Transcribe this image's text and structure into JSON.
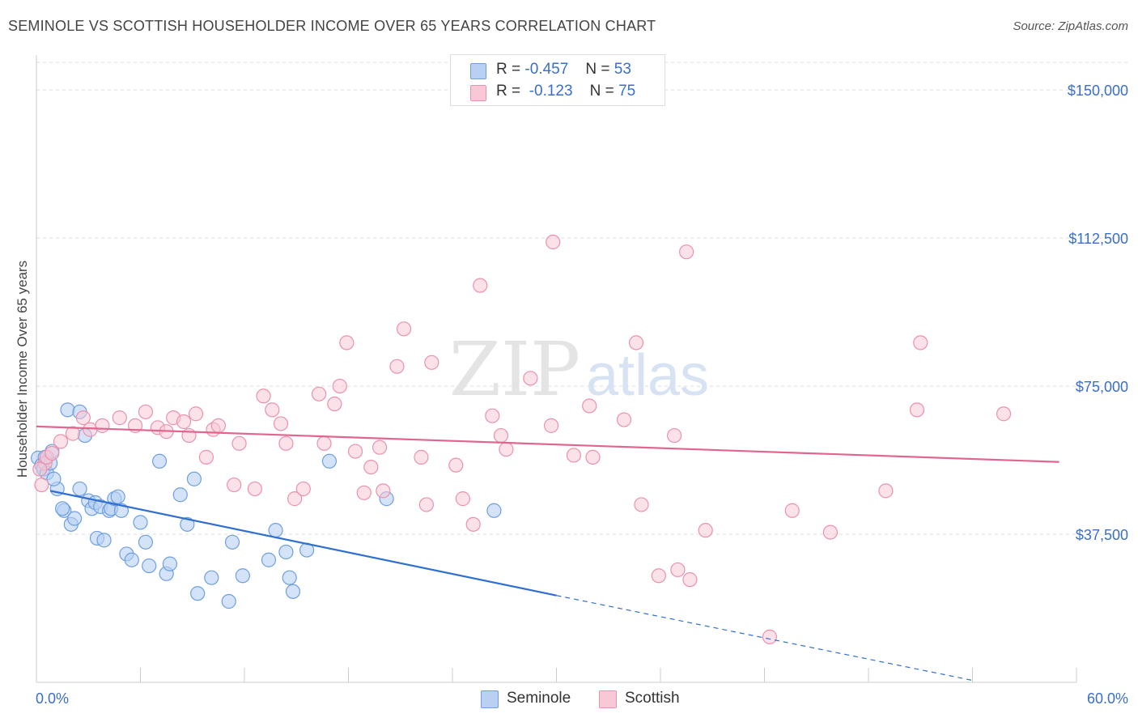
{
  "header": {
    "title": "SEMINOLE VS SCOTTISH HOUSEHOLDER INCOME OVER 65 YEARS CORRELATION CHART",
    "source": "Source: ZipAtlas.com"
  },
  "legend": {
    "rows": [
      {
        "r_label": "R =",
        "r_value": "-0.457",
        "n_label": "N =",
        "n_value": "53"
      },
      {
        "r_label": "R =",
        "r_value": "-0.123",
        "n_label": "N =",
        "n_value": "75"
      }
    ],
    "bottom": [
      "Seminole",
      "Scottish"
    ]
  },
  "watermark": {
    "zip": "ZIP",
    "atlas": "atlas"
  },
  "chart_data": {
    "type": "scatter",
    "title": "SEMINOLE VS SCOTTISH HOUSEHOLDER INCOME OVER 65 YEARS CORRELATION CHART",
    "xlabel": "",
    "ylabel": "Householder Income Over 65 years",
    "xlim": [
      0,
      60
    ],
    "ylim": [
      0,
      157000
    ],
    "x_tick_labels": [
      "0.0%",
      "60.0%"
    ],
    "y_ticks": [
      37500,
      75000,
      112500,
      150000
    ],
    "y_tick_labels": [
      "$37,500",
      "$75,000",
      "$112,500",
      "$150,000"
    ],
    "grid": true,
    "legend_position": "top-center",
    "colors": {
      "seminole_fill": "#b8d1f3",
      "seminole_stroke": "#6e9fe0",
      "seminole_line": "#2f6fd0",
      "scottish_fill": "#f8c8d6",
      "scottish_stroke": "#ea92ad",
      "scottish_line": "#e06690",
      "axis_label": "#3a6fc7"
    },
    "series": [
      {
        "name": "Seminole",
        "trend": {
          "x0": 0.8,
          "y0": 48500,
          "x1": 30,
          "y1": 22000,
          "dash_to_x": 54,
          "dash_to_y": 500
        },
        "points": [
          [
            0.1,
            56800
          ],
          [
            0.3,
            55000
          ],
          [
            0.4,
            54000
          ],
          [
            0.6,
            53000
          ],
          [
            0.8,
            55500
          ],
          [
            1.2,
            49000
          ],
          [
            1.6,
            43500
          ],
          [
            2.0,
            40000
          ],
          [
            2.5,
            49000
          ],
          [
            1.8,
            69000
          ],
          [
            2.5,
            68500
          ],
          [
            2.8,
            62500
          ],
          [
            3.0,
            46000
          ],
          [
            3.2,
            44000
          ],
          [
            3.4,
            45500
          ],
          [
            3.5,
            36500
          ],
          [
            3.7,
            44500
          ],
          [
            3.9,
            36000
          ],
          [
            4.2,
            43500
          ],
          [
            4.3,
            44000
          ],
          [
            4.5,
            46500
          ],
          [
            4.7,
            47000
          ],
          [
            4.9,
            43500
          ],
          [
            5.2,
            32500
          ],
          [
            5.5,
            31000
          ],
          [
            6.0,
            40500
          ],
          [
            6.3,
            35500
          ],
          [
            6.5,
            29500
          ],
          [
            7.1,
            56000
          ],
          [
            7.5,
            27500
          ],
          [
            7.7,
            30000
          ],
          [
            8.3,
            47500
          ],
          [
            8.7,
            40000
          ],
          [
            9.1,
            51500
          ],
          [
            9.3,
            22500
          ],
          [
            10.1,
            26500
          ],
          [
            11.1,
            20500
          ],
          [
            11.3,
            35500
          ],
          [
            11.9,
            27000
          ],
          [
            13.4,
            31000
          ],
          [
            13.8,
            38500
          ],
          [
            14.4,
            33000
          ],
          [
            14.6,
            26500
          ],
          [
            14.8,
            23000
          ],
          [
            15.6,
            33500
          ],
          [
            16.9,
            56000
          ],
          [
            20.2,
            46500
          ],
          [
            26.4,
            43500
          ],
          [
            0.5,
            57000
          ],
          [
            1.0,
            51500
          ],
          [
            1.5,
            44000
          ],
          [
            2.2,
            41500
          ],
          [
            0.9,
            58500
          ]
        ]
      },
      {
        "name": "Scottish",
        "trend": {
          "x0": 0,
          "y0": 64800,
          "x1": 59,
          "y1": 55800
        },
        "points": [
          [
            0.3,
            50000
          ],
          [
            0.5,
            55500
          ],
          [
            0.6,
            57000
          ],
          [
            0.9,
            58000
          ],
          [
            1.4,
            61000
          ],
          [
            2.1,
            63000
          ],
          [
            2.7,
            67000
          ],
          [
            3.1,
            64000
          ],
          [
            3.8,
            65000
          ],
          [
            4.8,
            67000
          ],
          [
            5.7,
            65000
          ],
          [
            6.3,
            68500
          ],
          [
            7.0,
            64500
          ],
          [
            7.5,
            63500
          ],
          [
            7.9,
            67000
          ],
          [
            8.5,
            66000
          ],
          [
            8.8,
            62500
          ],
          [
            9.2,
            68000
          ],
          [
            9.8,
            57000
          ],
          [
            10.2,
            64000
          ],
          [
            10.5,
            65000
          ],
          [
            11.4,
            50000
          ],
          [
            11.7,
            60500
          ],
          [
            12.6,
            49000
          ],
          [
            13.1,
            72500
          ],
          [
            13.6,
            69000
          ],
          [
            14.1,
            65500
          ],
          [
            14.4,
            60500
          ],
          [
            14.9,
            46500
          ],
          [
            15.4,
            49000
          ],
          [
            16.3,
            73000
          ],
          [
            16.6,
            60500
          ],
          [
            17.2,
            70500
          ],
          [
            17.5,
            75000
          ],
          [
            17.9,
            86000
          ],
          [
            18.4,
            58500
          ],
          [
            18.9,
            48000
          ],
          [
            19.3,
            54500
          ],
          [
            19.8,
            59500
          ],
          [
            20.0,
            48500
          ],
          [
            20.8,
            80000
          ],
          [
            21.2,
            89500
          ],
          [
            22.2,
            57000
          ],
          [
            22.5,
            45000
          ],
          [
            22.8,
            81000
          ],
          [
            24.2,
            55000
          ],
          [
            24.6,
            46500
          ],
          [
            25.2,
            40000
          ],
          [
            25.6,
            100500
          ],
          [
            26.3,
            67500
          ],
          [
            26.8,
            62500
          ],
          [
            27.1,
            59000
          ],
          [
            28.5,
            77000
          ],
          [
            29.7,
            65000
          ],
          [
            29.8,
            111500
          ],
          [
            31.0,
            57500
          ],
          [
            31.9,
            70000
          ],
          [
            32.1,
            57000
          ],
          [
            33.9,
            66500
          ],
          [
            34.6,
            86000
          ],
          [
            34.9,
            45000
          ],
          [
            35.9,
            27000
          ],
          [
            36.8,
            62500
          ],
          [
            37.0,
            28500
          ],
          [
            37.5,
            109000
          ],
          [
            37.7,
            26000
          ],
          [
            38.6,
            38500
          ],
          [
            42.3,
            11500
          ],
          [
            43.6,
            43500
          ],
          [
            45.8,
            38000
          ],
          [
            49.0,
            48500
          ],
          [
            50.8,
            69000
          ],
          [
            51.0,
            86000
          ],
          [
            55.8,
            68000
          ],
          [
            0.2,
            54000
          ]
        ]
      }
    ]
  }
}
